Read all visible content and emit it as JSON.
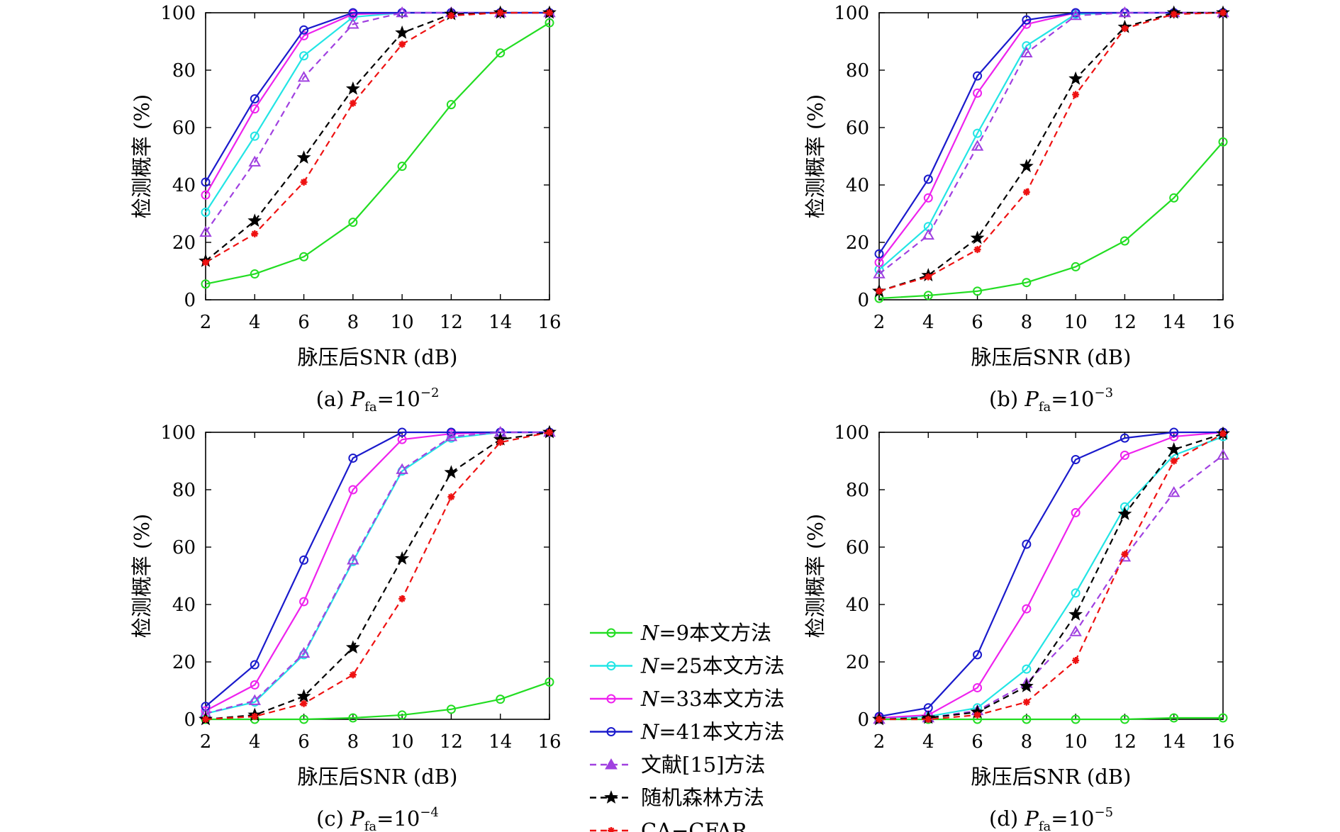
{
  "chart_data": [
    {
      "id": "a",
      "type": "line",
      "caption_prefix": "(a) ",
      "caption_p": "P",
      "caption_sub": "fa",
      "caption_eq": "=10",
      "caption_exp": "−2",
      "xlabel": "脉压后SNR (dB)",
      "ylabel": "检测概率 (%)",
      "x": [
        2,
        4,
        6,
        8,
        10,
        12,
        14,
        16
      ],
      "xlim": [
        2,
        16
      ],
      "ylim": [
        0,
        100
      ],
      "xticks": [
        2,
        4,
        6,
        8,
        10,
        12,
        14,
        16
      ],
      "yticks": [
        0,
        20,
        40,
        60,
        80,
        100
      ],
      "grid": false,
      "series": [
        {
          "key": "n9",
          "values": [
            5.5,
            9,
            15,
            27,
            46.5,
            68,
            86,
            96.5
          ]
        },
        {
          "key": "n25",
          "values": [
            30.5,
            57,
            85,
            98.5,
            100,
            100,
            100,
            100
          ]
        },
        {
          "key": "n33",
          "values": [
            36.5,
            66.5,
            92,
            99.5,
            100,
            100,
            100,
            100
          ]
        },
        {
          "key": "n41",
          "values": [
            41,
            70,
            94,
            100,
            100,
            100,
            100,
            100
          ]
        },
        {
          "key": "ref15",
          "values": [
            23.5,
            48,
            77.5,
            96,
            100,
            100,
            100,
            100
          ]
        },
        {
          "key": "rf",
          "values": [
            13.5,
            27.5,
            49.5,
            73.5,
            93,
            99.5,
            100,
            100
          ]
        },
        {
          "key": "cfar",
          "values": [
            13,
            23,
            41,
            68.5,
            89,
            99,
            100,
            100
          ]
        }
      ]
    },
    {
      "id": "b",
      "type": "line",
      "caption_prefix": "(b) ",
      "caption_p": "P",
      "caption_sub": "fa",
      "caption_eq": "=10",
      "caption_exp": "−3",
      "xlabel": "脉压后SNR (dB)",
      "ylabel": "检测概率 (%)",
      "x": [
        2,
        4,
        6,
        8,
        10,
        12,
        14,
        16
      ],
      "xlim": [
        2,
        16
      ],
      "ylim": [
        0,
        100
      ],
      "xticks": [
        2,
        4,
        6,
        8,
        10,
        12,
        14,
        16
      ],
      "yticks": [
        0,
        20,
        40,
        60,
        80,
        100
      ],
      "grid": false,
      "series": [
        {
          "key": "n9",
          "values": [
            0.5,
            1.5,
            3,
            6,
            11.5,
            20.5,
            35.5,
            55
          ]
        },
        {
          "key": "n25",
          "values": [
            10.5,
            25.5,
            58,
            88.5,
            99.5,
            100,
            100,
            100
          ]
        },
        {
          "key": "n33",
          "values": [
            13,
            35.5,
            72,
            96,
            100,
            100,
            100,
            100
          ]
        },
        {
          "key": "n41",
          "values": [
            16,
            42,
            78,
            97.5,
            100,
            100,
            100,
            100
          ]
        },
        {
          "key": "ref15",
          "values": [
            9,
            22.5,
            53.5,
            86,
            99,
            100,
            100,
            100
          ]
        },
        {
          "key": "rf",
          "values": [
            3,
            8.5,
            21.5,
            46.5,
            77,
            95,
            100,
            100
          ]
        },
        {
          "key": "cfar",
          "values": [
            3,
            8,
            17.5,
            37.5,
            71.5,
            94.5,
            99.5,
            100
          ]
        }
      ]
    },
    {
      "id": "c",
      "type": "line",
      "caption_prefix": "(c) ",
      "caption_p": "P",
      "caption_sub": "fa",
      "caption_eq": "=10",
      "caption_exp": "−4",
      "xlabel": "脉压后SNR (dB)",
      "ylabel": "检测概率 (%)",
      "x": [
        2,
        4,
        6,
        8,
        10,
        12,
        14,
        16
      ],
      "xlim": [
        2,
        16
      ],
      "ylim": [
        0,
        100
      ],
      "xticks": [
        2,
        4,
        6,
        8,
        10,
        12,
        14,
        16
      ],
      "yticks": [
        0,
        20,
        40,
        60,
        80,
        100
      ],
      "grid": false,
      "series": [
        {
          "key": "n9",
          "values": [
            0,
            0,
            0,
            0.5,
            1.5,
            3.5,
            7,
            13
          ]
        },
        {
          "key": "n25",
          "values": [
            2,
            6,
            22.5,
            55,
            86.5,
            98,
            100,
            100
          ]
        },
        {
          "key": "n33",
          "values": [
            3,
            12,
            41,
            80,
            97.5,
            99.5,
            100,
            100
          ]
        },
        {
          "key": "n41",
          "values": [
            4.5,
            19,
            55.5,
            91,
            100,
            100,
            100,
            100
          ]
        },
        {
          "key": "ref15",
          "values": [
            2,
            6.5,
            23,
            55.5,
            87,
            98.5,
            100,
            100
          ]
        },
        {
          "key": "rf",
          "values": [
            0,
            1.5,
            8,
            25,
            56,
            86,
            97.5,
            100
          ]
        },
        {
          "key": "cfar",
          "values": [
            0,
            1,
            5.5,
            15.5,
            42,
            77.5,
            96.5,
            100
          ]
        }
      ]
    },
    {
      "id": "d",
      "type": "line",
      "caption_prefix": "(d) ",
      "caption_p": "P",
      "caption_sub": "fa",
      "caption_eq": "=10",
      "caption_exp": "−5",
      "xlabel": "脉压后SNR (dB)",
      "ylabel": "检测概率 (%)",
      "x": [
        2,
        4,
        6,
        8,
        10,
        12,
        14,
        16
      ],
      "xlim": [
        2,
        16
      ],
      "ylim": [
        0,
        100
      ],
      "xticks": [
        2,
        4,
        6,
        8,
        10,
        12,
        14,
        16
      ],
      "yticks": [
        0,
        20,
        40,
        60,
        80,
        100
      ],
      "grid": false,
      "series": [
        {
          "key": "n9",
          "values": [
            0,
            0,
            0,
            0,
            0,
            0,
            0.5,
            0.5
          ]
        },
        {
          "key": "n25",
          "values": [
            0.5,
            1,
            4,
            17.5,
            44,
            74,
            92,
            98.5
          ]
        },
        {
          "key": "n33",
          "values": [
            0.5,
            1.5,
            11,
            38.5,
            72,
            92,
            98.5,
            100
          ]
        },
        {
          "key": "n41",
          "values": [
            1,
            4,
            22.5,
            61,
            90.5,
            98,
            100,
            100
          ]
        },
        {
          "key": "ref15",
          "values": [
            0,
            0.5,
            3,
            12.5,
            30.5,
            56.5,
            79,
            92
          ]
        },
        {
          "key": "rf",
          "values": [
            0,
            0.5,
            2.5,
            11.5,
            36.5,
            71.5,
            94,
            99.5
          ]
        },
        {
          "key": "cfar",
          "values": [
            0,
            0,
            1.5,
            6,
            20.5,
            57.5,
            90,
            99.5
          ]
        }
      ]
    }
  ],
  "legend": {
    "placement": "center, between lower panels",
    "items": [
      {
        "key": "n9",
        "italic": "N",
        "rest": "=9本文方法",
        "color": "#22dd22",
        "dash": "solid",
        "marker": "circle"
      },
      {
        "key": "n25",
        "italic": "N",
        "rest": "=25本文方法",
        "color": "#22e5e5",
        "dash": "solid",
        "marker": "circle"
      },
      {
        "key": "n33",
        "italic": "N",
        "rest": "=33本文方法",
        "color": "#ee22ee",
        "dash": "solid",
        "marker": "circle"
      },
      {
        "key": "n41",
        "italic": "N",
        "rest": "=41本文方法",
        "color": "#1a1acc",
        "dash": "solid",
        "marker": "circle"
      },
      {
        "key": "ref15",
        "italic": "",
        "rest": "文献[15]方法",
        "color": "#a040e0",
        "dash": "dashed",
        "marker": "triangle"
      },
      {
        "key": "rf",
        "italic": "",
        "rest": "随机森林方法",
        "color": "#000000",
        "dash": "dashed",
        "marker": "star"
      },
      {
        "key": "cfar",
        "italic": "",
        "rest": "CA−CFAR",
        "color": "#ee1111",
        "dash": "dashed",
        "marker": "asterisk"
      }
    ]
  }
}
